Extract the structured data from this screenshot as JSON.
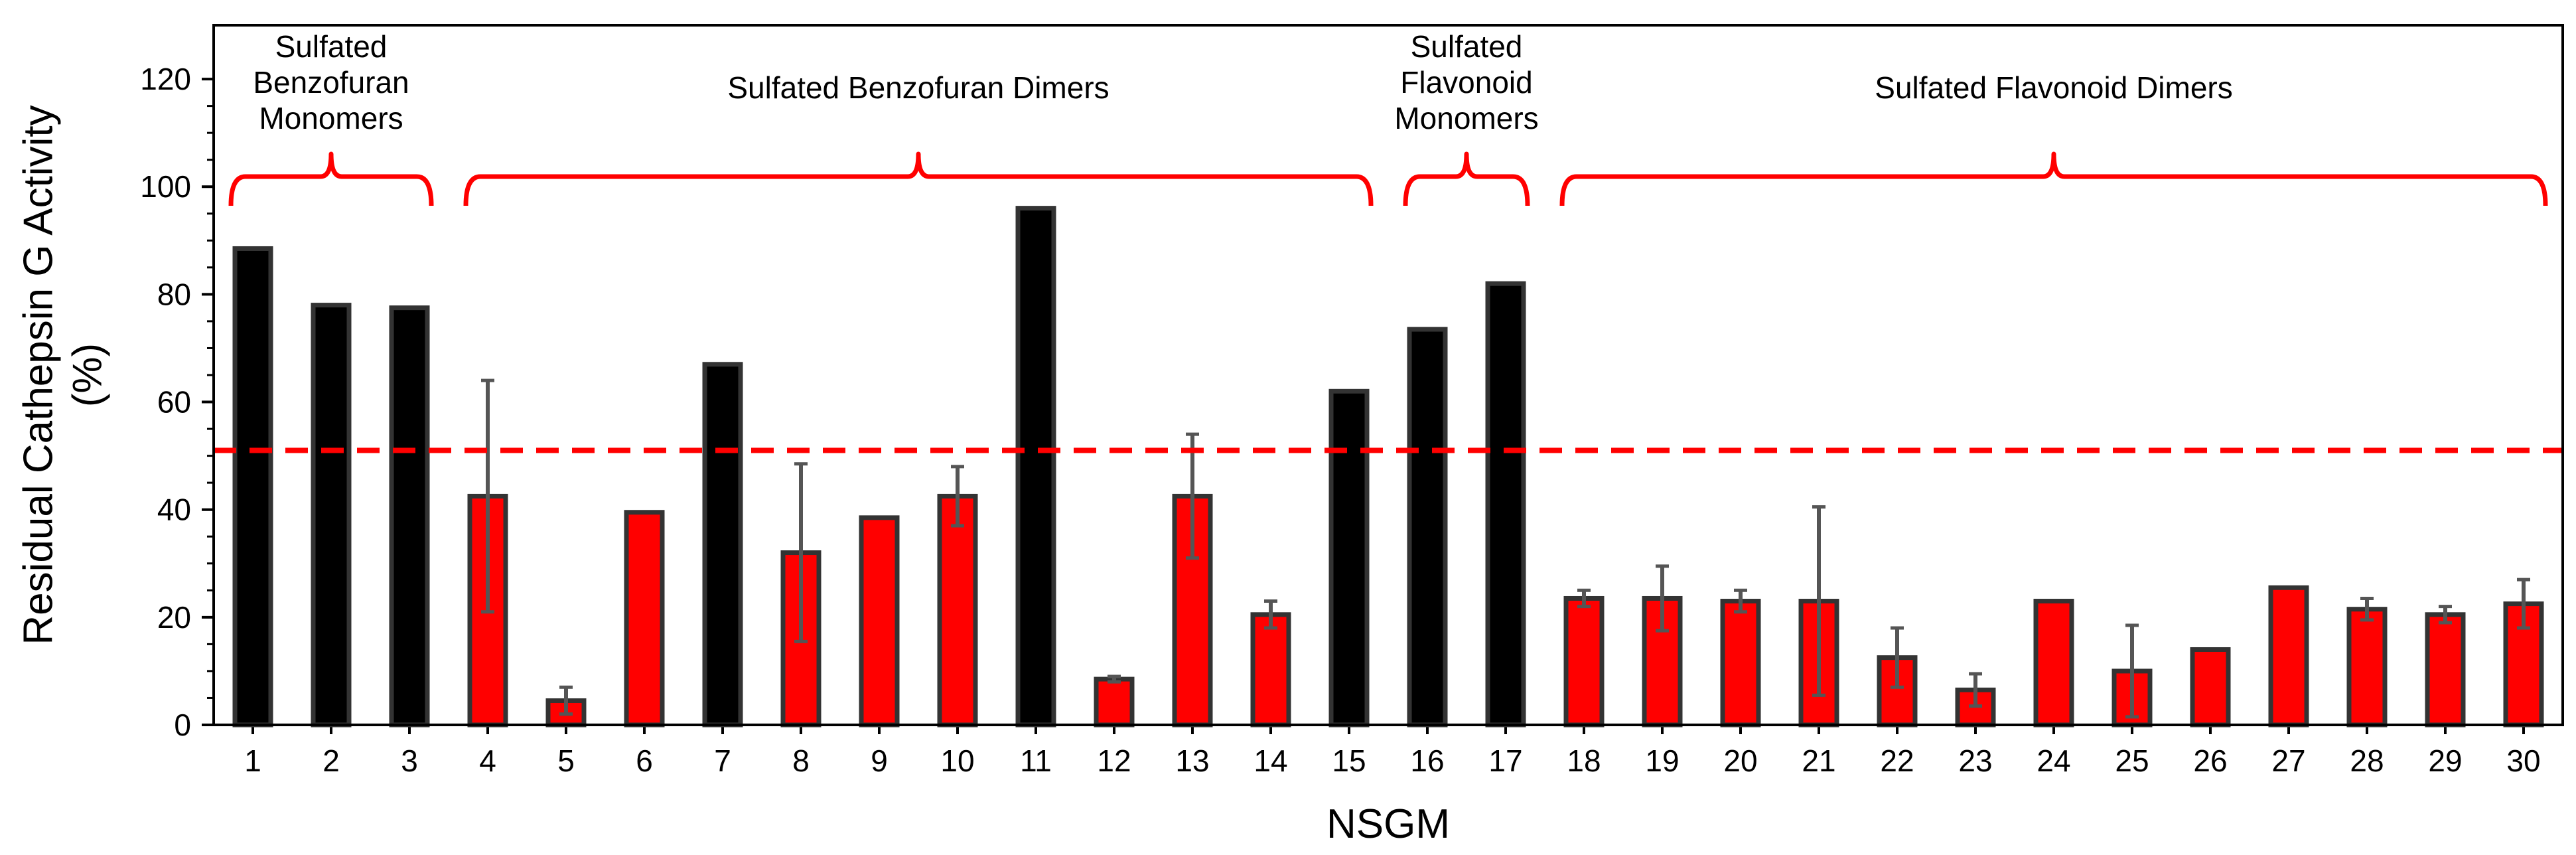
{
  "chart_data": {
    "type": "bar",
    "title": "",
    "xlabel": "NSGM",
    "ylabel_lines": [
      "Residual Cathepsin G Activity",
      "(%)"
    ],
    "ylim": [
      0,
      130
    ],
    "yticks": [
      0,
      20,
      40,
      60,
      80,
      100,
      120
    ],
    "threshold": 51,
    "grid": false,
    "categories": [
      "1",
      "2",
      "3",
      "4",
      "5",
      "6",
      "7",
      "8",
      "9",
      "10",
      "11",
      "12",
      "13",
      "14",
      "15",
      "16",
      "17",
      "18",
      "19",
      "20",
      "21",
      "22",
      "23",
      "24",
      "25",
      "26",
      "27",
      "28",
      "29",
      "30"
    ],
    "values": [
      88.5,
      78,
      77.5,
      42.5,
      4.5,
      39.5,
      67,
      32,
      38.5,
      42.5,
      96,
      8.5,
      42.5,
      20.5,
      62,
      73.5,
      82,
      23.5,
      23.5,
      23,
      23,
      12.5,
      6.5,
      23,
      10,
      14,
      25.5,
      21.5,
      20.5,
      22.5
    ],
    "errors": [
      0,
      0,
      0,
      21.5,
      2.5,
      0,
      0,
      16.5,
      0,
      5.5,
      0,
      0.5,
      11.5,
      2.5,
      0,
      0,
      0,
      1.5,
      6,
      2,
      17.5,
      5.5,
      3,
      0,
      8.5,
      0,
      0,
      2,
      1.5,
      4.5
    ],
    "bar_colors": [
      "black",
      "black",
      "black",
      "red",
      "red",
      "red",
      "black",
      "red",
      "red",
      "red",
      "black",
      "red",
      "red",
      "red",
      "black",
      "black",
      "black",
      "red",
      "red",
      "red",
      "red",
      "red",
      "red",
      "red",
      "red",
      "red",
      "red",
      "red",
      "red",
      "red"
    ],
    "groups": [
      {
        "lines": [
          "Sulfated",
          "Benzofuran",
          "Monomers"
        ],
        "start": 1,
        "end": 3
      },
      {
        "lines": [
          "Sulfated Benzofuran Dimers"
        ],
        "start": 4,
        "end": 15
      },
      {
        "lines": [
          "Sulfated",
          "Flavonoid",
          "Monomers"
        ],
        "start": 16,
        "end": 17
      },
      {
        "lines": [
          "Sulfated Flavonoid Dimers"
        ],
        "start": 18,
        "end": 30
      }
    ]
  },
  "colors": {
    "active": "#ff0000",
    "inactive": "#000000",
    "bar_edge": "#333333",
    "error_bar": "#555555",
    "threshold": "#ff0000"
  }
}
